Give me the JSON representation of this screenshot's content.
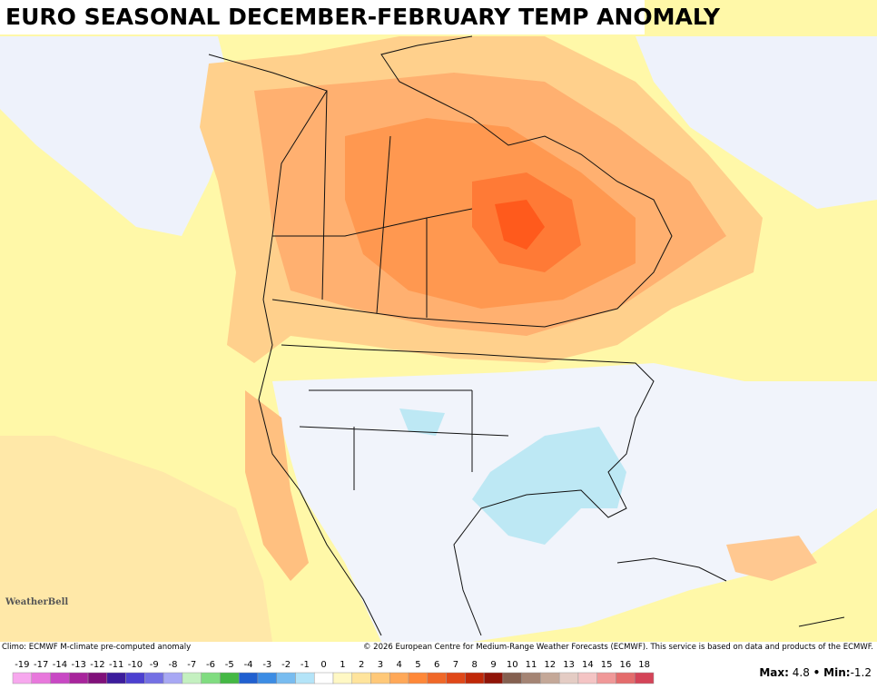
{
  "header": {
    "title": "EURO SEASONAL DECEMBER-FEBRUARY TEMP ANOMALY"
  },
  "logo": "WeatherBell",
  "footer": {
    "climo": "Climo: ECMWF M-climate pre-computed anomaly",
    "copyright": "© 2026 European Centre for Medium-Range Weather Forecasts (ECMWF). This service is based on data and products of the ECMWF."
  },
  "stats": {
    "max_label": "Max:",
    "max": 4.8,
    "separator": "•",
    "min_label": "Min:",
    "min": -1.2
  },
  "colorbar": {
    "ticks": [
      -19,
      -17,
      -14,
      -13,
      -12,
      -11,
      -10,
      -9,
      -8,
      -7,
      -6,
      -5,
      -4,
      -3,
      -2,
      -1,
      0,
      1,
      2,
      3,
      4,
      5,
      6,
      7,
      8,
      9,
      10,
      11,
      12,
      13,
      14,
      15,
      16,
      18
    ],
    "colors": [
      "#f7a8ee",
      "#e878dc",
      "#c848c4",
      "#a8249c",
      "#80107a",
      "#3c1c9c",
      "#4c40d0",
      "#7470e4",
      "#a8a8f4",
      "#c4f0c0",
      "#80dc80",
      "#44b844",
      "#2060d0",
      "#3c8ce4",
      "#78bcf0",
      "#b4e4f8",
      "#ffffff",
      "#fff8c4",
      "#ffe49c",
      "#ffc878",
      "#ffa858",
      "#ff8838",
      "#f06828",
      "#e04818",
      "#c02808",
      "#901408",
      "#846050",
      "#a48474",
      "#c4a898",
      "#e4ccc4",
      "#f4c4c4",
      "#f09898",
      "#e46c6c",
      "#d44458"
    ]
  }
}
